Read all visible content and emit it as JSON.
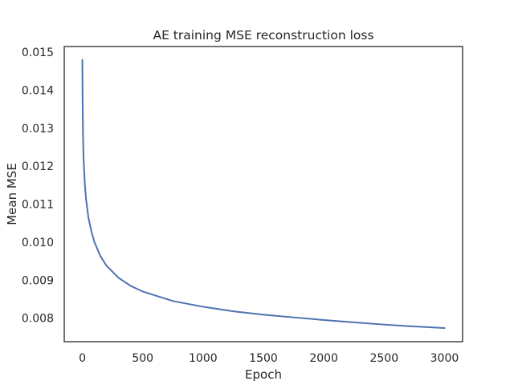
{
  "chart_data": {
    "type": "line",
    "title": "AE training MSE reconstruction loss",
    "xlabel": "Epoch",
    "ylabel": "Mean MSE",
    "xlim": [
      -150,
      3150
    ],
    "ylim": [
      0.00738,
      0.01515
    ],
    "x_ticks": [
      0,
      500,
      1000,
      1500,
      2000,
      2500,
      3000
    ],
    "x_tick_labels": [
      "0",
      "500",
      "1000",
      "1500",
      "2000",
      "2500",
      "3000"
    ],
    "y_ticks": [
      0.008,
      0.009,
      0.01,
      0.011,
      0.012,
      0.013,
      0.014,
      0.015
    ],
    "y_tick_labels": [
      "0.008",
      "0.009",
      "0.010",
      "0.011",
      "0.012",
      "0.013",
      "0.014",
      "0.015"
    ],
    "grid": false,
    "legend": "none",
    "series": [
      {
        "name": "MSE",
        "color": "#4c72b0",
        "x": [
          0,
          2,
          5,
          10,
          20,
          30,
          50,
          75,
          100,
          150,
          200,
          300,
          400,
          500,
          750,
          1000,
          1250,
          1500,
          1750,
          2000,
          2250,
          2500,
          2750,
          3000
        ],
        "y": [
          0.0148,
          0.0138,
          0.0129,
          0.0122,
          0.01155,
          0.01115,
          0.01065,
          0.01028,
          0.01,
          0.00963,
          0.00938,
          0.00906,
          0.00885,
          0.0087,
          0.00845,
          0.0083,
          0.00818,
          0.00809,
          0.00802,
          0.00795,
          0.00789,
          0.00783,
          0.00778,
          0.00774
        ]
      }
    ]
  }
}
